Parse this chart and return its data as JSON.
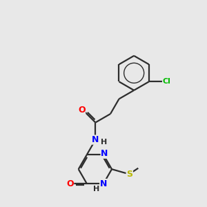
{
  "bg_color": "#e8e8e8",
  "bond_color": "#2d2d2d",
  "atom_colors": {
    "O": "#ff0000",
    "N": "#0000ff",
    "S": "#b8b800",
    "Cl": "#00bb00",
    "C": "#2d2d2d",
    "H": "#2d2d2d"
  },
  "figsize": [
    3.0,
    3.0
  ],
  "dpi": 100,
  "lw": 1.6,
  "fontsize": 8.5
}
